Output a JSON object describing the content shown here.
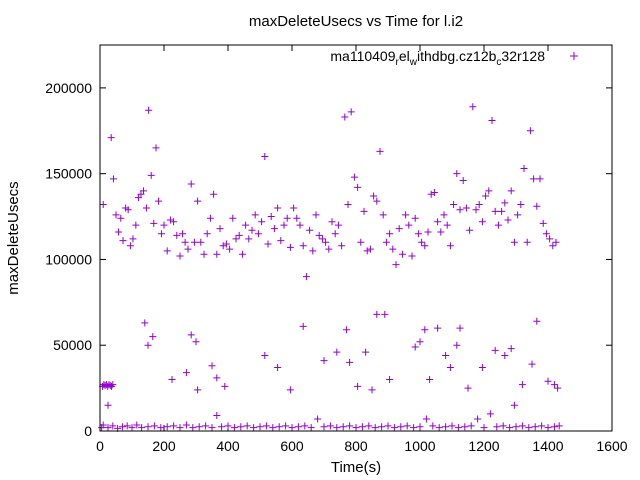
{
  "chart_data": {
    "type": "scatter",
    "title": "maxDeleteUsecs vs Time for l.i2",
    "xlabel": "Time(s)",
    "ylabel": "maxDeleteUsecs",
    "xlim": [
      0,
      1600
    ],
    "ylim": [
      0,
      225000
    ],
    "xticks": [
      "0",
      "200",
      "400",
      "600",
      "800",
      "1000",
      "1200",
      "1400",
      "1600"
    ],
    "yticks": [
      "0",
      "50000",
      "100000",
      "150000",
      "200000"
    ],
    "legend_position": "top-right",
    "marker": "+",
    "color": "#9400d3",
    "series": [
      {
        "name_parts": [
          {
            "text": "ma110409",
            "sub": false
          },
          {
            "text": "r",
            "sub": true
          },
          {
            "text": "el",
            "sub": false
          },
          {
            "text": "w",
            "sub": true
          },
          {
            "text": "ithdbg.cz12b",
            "sub": false
          },
          {
            "text": "c",
            "sub": true
          },
          {
            "text": "32r128",
            "sub": false
          }
        ],
        "points": [
          [
            10,
            132000
          ],
          [
            35,
            171000
          ],
          [
            42,
            147000
          ],
          [
            50,
            126000
          ],
          [
            58,
            116000
          ],
          [
            65,
            124000
          ],
          [
            72,
            111000
          ],
          [
            80,
            130000
          ],
          [
            88,
            129000
          ],
          [
            95,
            108000
          ],
          [
            103,
            112000
          ],
          [
            112,
            120000
          ],
          [
            120,
            136000
          ],
          [
            128,
            138000
          ],
          [
            136,
            140000
          ],
          [
            145,
            130000
          ],
          [
            152,
            187000
          ],
          [
            160,
            149000
          ],
          [
            168,
            121000
          ],
          [
            175,
            165000
          ],
          [
            183,
            134000
          ],
          [
            192,
            115000
          ],
          [
            200,
            120000
          ],
          [
            210,
            105000
          ],
          [
            220,
            123000
          ],
          [
            230,
            122000
          ],
          [
            240,
            114000
          ],
          [
            250,
            102000
          ],
          [
            258,
            115000
          ],
          [
            266,
            110000
          ],
          [
            275,
            106000
          ],
          [
            285,
            144000
          ],
          [
            295,
            110000
          ],
          [
            305,
            134000
          ],
          [
            315,
            110000
          ],
          [
            325,
            103000
          ],
          [
            335,
            115000
          ],
          [
            345,
            124000
          ],
          [
            355,
            138000
          ],
          [
            365,
            103000
          ],
          [
            375,
            118000
          ],
          [
            385,
            108000
          ],
          [
            395,
            109000
          ],
          [
            405,
            106000
          ],
          [
            415,
            124000
          ],
          [
            425,
            112000
          ],
          [
            435,
            114000
          ],
          [
            445,
            103000
          ],
          [
            455,
            120000
          ],
          [
            465,
            112000
          ],
          [
            475,
            117000
          ],
          [
            485,
            126000
          ],
          [
            495,
            115000
          ],
          [
            505,
            122000
          ],
          [
            515,
            160000
          ],
          [
            525,
            109000
          ],
          [
            535,
            125000
          ],
          [
            545,
            118000
          ],
          [
            555,
            130000
          ],
          [
            565,
            111000
          ],
          [
            575,
            120000
          ],
          [
            585,
            124000
          ],
          [
            595,
            107000
          ],
          [
            605,
            130000
          ],
          [
            615,
            124000
          ],
          [
            625,
            120000
          ],
          [
            635,
            108000
          ],
          [
            645,
            90000
          ],
          [
            655,
            117000
          ],
          [
            665,
            105000
          ],
          [
            675,
            126000
          ],
          [
            685,
            114000
          ],
          [
            695,
            112000
          ],
          [
            705,
            110000
          ],
          [
            715,
            106000
          ],
          [
            725,
            122000
          ],
          [
            735,
            115000
          ],
          [
            745,
            120000
          ],
          [
            755,
            108000
          ],
          [
            765,
            183000
          ],
          [
            775,
            132000
          ],
          [
            785,
            186000
          ],
          [
            795,
            148000
          ],
          [
            805,
            142000
          ],
          [
            815,
            110000
          ],
          [
            825,
            128000
          ],
          [
            835,
            105000
          ],
          [
            845,
            106000
          ],
          [
            855,
            137000
          ],
          [
            865,
            134000
          ],
          [
            875,
            163000
          ],
          [
            885,
            126000
          ],
          [
            895,
            110000
          ],
          [
            905,
            115000
          ],
          [
            915,
            106000
          ],
          [
            925,
            97000
          ],
          [
            935,
            118000
          ],
          [
            945,
            103000
          ],
          [
            955,
            126000
          ],
          [
            965,
            120000
          ],
          [
            975,
            102000
          ],
          [
            985,
            124000
          ],
          [
            995,
            115000
          ],
          [
            1005,
            110000
          ],
          [
            1015,
            108000
          ],
          [
            1025,
            116000
          ],
          [
            1035,
            138000
          ],
          [
            1045,
            139000
          ],
          [
            1055,
            122000
          ],
          [
            1065,
            116000
          ],
          [
            1075,
            126000
          ],
          [
            1085,
            120000
          ],
          [
            1095,
            108000
          ],
          [
            1105,
            132000
          ],
          [
            1115,
            150000
          ],
          [
            1125,
            129000
          ],
          [
            1135,
            146000
          ],
          [
            1145,
            130000
          ],
          [
            1155,
            117000
          ],
          [
            1165,
            189000
          ],
          [
            1175,
            129000
          ],
          [
            1185,
            132000
          ],
          [
            1195,
            122000
          ],
          [
            1205,
            137000
          ],
          [
            1215,
            140000
          ],
          [
            1225,
            181000
          ],
          [
            1235,
            128000
          ],
          [
            1245,
            120000
          ],
          [
            1255,
            128000
          ],
          [
            1265,
            133000
          ],
          [
            1275,
            123000
          ],
          [
            1285,
            140000
          ],
          [
            1295,
            110000
          ],
          [
            1305,
            126000
          ],
          [
            1315,
            132000
          ],
          [
            1325,
            153000
          ],
          [
            1335,
            110000
          ],
          [
            1345,
            175000
          ],
          [
            1355,
            147000
          ],
          [
            1365,
            131000
          ],
          [
            1375,
            147000
          ],
          [
            1385,
            121000
          ],
          [
            1395,
            115000
          ],
          [
            1405,
            112000
          ],
          [
            1415,
            108000
          ],
          [
            1425,
            110000
          ],
          [
            140,
            63000
          ],
          [
            150,
            50000
          ],
          [
            165,
            55000
          ],
          [
            225,
            30000
          ],
          [
            270,
            34000
          ],
          [
            285,
            56000
          ],
          [
            300,
            52000
          ],
          [
            305,
            24000
          ],
          [
            350,
            38000
          ],
          [
            365,
            31000
          ],
          [
            390,
            26000
          ],
          [
            515,
            44000
          ],
          [
            555,
            37000
          ],
          [
            595,
            24000
          ],
          [
            635,
            61000
          ],
          [
            700,
            41000
          ],
          [
            740,
            46000
          ],
          [
            770,
            59000
          ],
          [
            780,
            40000
          ],
          [
            805,
            26000
          ],
          [
            830,
            46000
          ],
          [
            850,
            24000
          ],
          [
            865,
            68000
          ],
          [
            890,
            68000
          ],
          [
            905,
            30000
          ],
          [
            985,
            49000
          ],
          [
            1000,
            52000
          ],
          [
            1015,
            59000
          ],
          [
            1030,
            30000
          ],
          [
            1055,
            60000
          ],
          [
            1080,
            44000
          ],
          [
            1095,
            37000
          ],
          [
            1115,
            50000
          ],
          [
            1125,
            60000
          ],
          [
            1150,
            25000
          ],
          [
            1195,
            37000
          ],
          [
            1235,
            47000
          ],
          [
            1265,
            44000
          ],
          [
            1285,
            48000
          ],
          [
            1295,
            15000
          ],
          [
            1320,
            27000
          ],
          [
            1350,
            39000
          ],
          [
            1365,
            64000
          ],
          [
            1400,
            29000
          ],
          [
            1420,
            27000
          ],
          [
            1430,
            25000
          ],
          [
            8,
            26000
          ],
          [
            12,
            27000
          ],
          [
            16,
            26500
          ],
          [
            20,
            27000
          ],
          [
            24,
            26000
          ],
          [
            28,
            27000
          ],
          [
            32,
            26500
          ],
          [
            36,
            26000
          ],
          [
            40,
            27000
          ],
          [
            5,
            2000
          ],
          [
            10,
            3500
          ],
          [
            25,
            15000
          ],
          [
            25,
            2000
          ],
          [
            40,
            3000
          ],
          [
            55,
            1500
          ],
          [
            70,
            2500
          ],
          [
            85,
            3000
          ],
          [
            100,
            2000
          ],
          [
            115,
            3500
          ],
          [
            130,
            2000
          ],
          [
            150,
            2500
          ],
          [
            170,
            3000
          ],
          [
            190,
            2000
          ],
          [
            210,
            2500
          ],
          [
            230,
            3000
          ],
          [
            250,
            2000
          ],
          [
            270,
            3500
          ],
          [
            290,
            2000
          ],
          [
            310,
            2500
          ],
          [
            330,
            3000
          ],
          [
            350,
            2000
          ],
          [
            365,
            9000
          ],
          [
            380,
            2500
          ],
          [
            400,
            3000
          ],
          [
            420,
            2000
          ],
          [
            440,
            2500
          ],
          [
            460,
            3000
          ],
          [
            480,
            2000
          ],
          [
            500,
            2500
          ],
          [
            520,
            3000
          ],
          [
            540,
            2000
          ],
          [
            560,
            2500
          ],
          [
            580,
            3000
          ],
          [
            600,
            2000
          ],
          [
            620,
            2500
          ],
          [
            640,
            3000
          ],
          [
            660,
            2000
          ],
          [
            680,
            7000
          ],
          [
            700,
            2500
          ],
          [
            720,
            3000
          ],
          [
            740,
            2000
          ],
          [
            760,
            2500
          ],
          [
            780,
            3000
          ],
          [
            800,
            2000
          ],
          [
            820,
            2500
          ],
          [
            840,
            3000
          ],
          [
            860,
            2000
          ],
          [
            880,
            2500
          ],
          [
            900,
            3000
          ],
          [
            920,
            2000
          ],
          [
            940,
            2500
          ],
          [
            960,
            3000
          ],
          [
            980,
            2000
          ],
          [
            1000,
            2500
          ],
          [
            1020,
            7000
          ],
          [
            1040,
            3000
          ],
          [
            1060,
            2000
          ],
          [
            1080,
            2500
          ],
          [
            1100,
            3000
          ],
          [
            1120,
            2000
          ],
          [
            1140,
            2500
          ],
          [
            1160,
            3000
          ],
          [
            1180,
            7000
          ],
          [
            1200,
            2000
          ],
          [
            1220,
            10000
          ],
          [
            1240,
            2500
          ],
          [
            1260,
            3000
          ],
          [
            1280,
            2000
          ],
          [
            1300,
            2500
          ],
          [
            1320,
            3000
          ],
          [
            1340,
            2000
          ],
          [
            1360,
            2500
          ],
          [
            1380,
            3000
          ],
          [
            1400,
            2000
          ],
          [
            1420,
            2500
          ],
          [
            1435,
            3000
          ]
        ]
      }
    ]
  }
}
